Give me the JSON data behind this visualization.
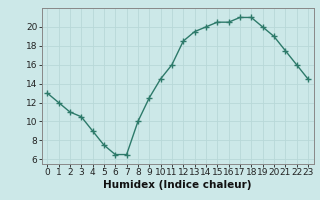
{
  "title": "",
  "xlabel": "Humidex (Indice chaleur)",
  "ylabel": "",
  "x_values": [
    0,
    1,
    2,
    3,
    4,
    5,
    6,
    7,
    8,
    9,
    10,
    11,
    12,
    13,
    14,
    15,
    16,
    17,
    18,
    19,
    20,
    21,
    22,
    23
  ],
  "y_values": [
    13,
    12,
    11,
    10.5,
    9,
    7.5,
    6.5,
    6.5,
    10,
    12.5,
    14.5,
    16,
    18.5,
    19.5,
    20,
    20.5,
    20.5,
    21,
    21,
    20,
    19,
    17.5,
    16,
    14.5
  ],
  "ylim": [
    5.5,
    22
  ],
  "yticks": [
    6,
    8,
    10,
    12,
    14,
    16,
    18,
    20
  ],
  "line_color": "#2d7a6a",
  "marker": "+",
  "marker_size": 4,
  "marker_lw": 1.0,
  "line_width": 1.0,
  "bg_color": "#cce8e8",
  "grid_color": "#b8d8d8",
  "axis_color": "#888888",
  "xlabel_fontsize": 7.5,
  "tick_fontsize": 6.5
}
